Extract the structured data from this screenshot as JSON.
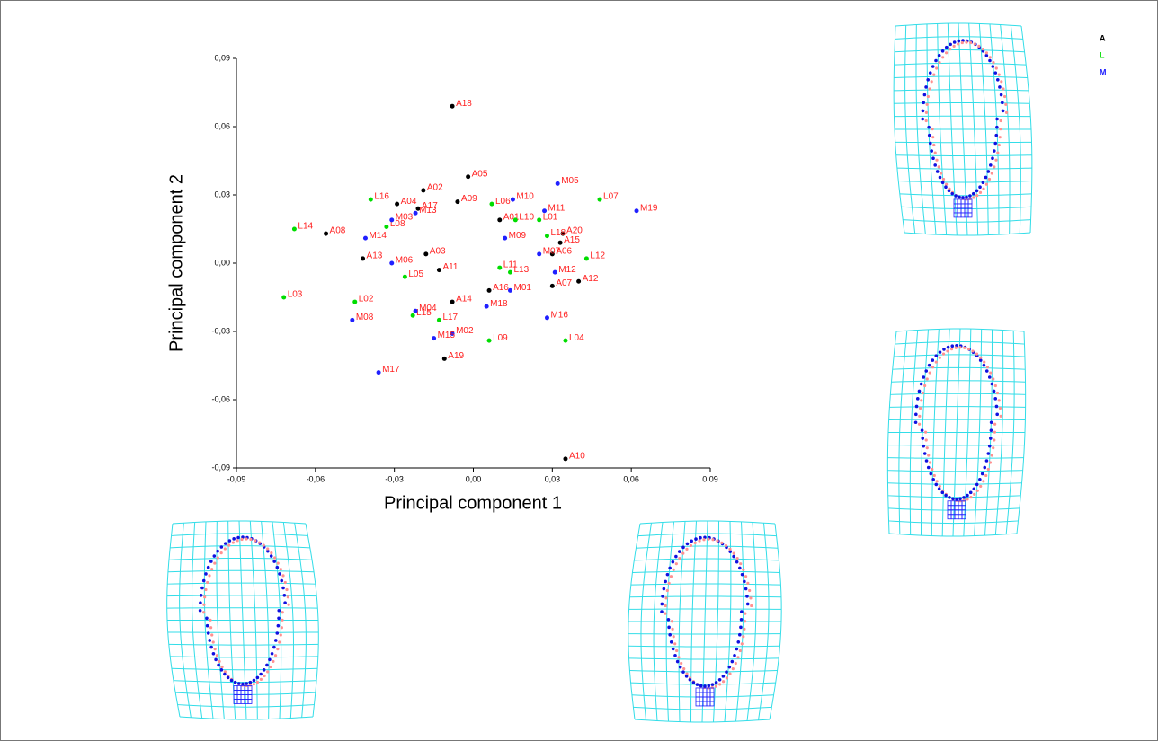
{
  "chart_data": {
    "type": "scatter",
    "xlabel": "Principal component 1",
    "ylabel": "Principal component 2",
    "xlim": [
      -0.09,
      0.09
    ],
    "ylim": [
      -0.09,
      0.09
    ],
    "xticks": [
      {
        "value": -0.09,
        "label": "-0,09"
      },
      {
        "value": -0.06,
        "label": "-0,06"
      },
      {
        "value": -0.03,
        "label": "-0,03"
      },
      {
        "value": 0,
        "label": "0,00"
      },
      {
        "value": 0.03,
        "label": "0,03"
      },
      {
        "value": 0.06,
        "label": "0,06"
      },
      {
        "value": 0.09,
        "label": "0,09"
      }
    ],
    "yticks": [
      {
        "value": -0.09,
        "label": "-0,09"
      },
      {
        "value": -0.06,
        "label": "-0,06"
      },
      {
        "value": -0.03,
        "label": "-0,03"
      },
      {
        "value": 0,
        "label": "0,00"
      },
      {
        "value": 0.03,
        "label": "0,03"
      },
      {
        "value": 0.06,
        "label": "0,06"
      },
      {
        "value": 0.09,
        "label": "0,09"
      }
    ],
    "legend": "top-right",
    "series": [
      {
        "name": "A",
        "color": "#000000",
        "labels": [
          "A18",
          "A05",
          "A02",
          "A04",
          "A17",
          "A09",
          "A01",
          "A08",
          "A20",
          "A15",
          "A06",
          "A13",
          "A03",
          "A11",
          "A07",
          "A12",
          "A16",
          "A14",
          "A19",
          "A10"
        ],
        "x": [
          -0.008,
          -0.002,
          -0.019,
          -0.029,
          -0.021,
          -0.006,
          0.01,
          -0.056,
          0.034,
          0.033,
          0.03,
          -0.042,
          -0.018,
          -0.013,
          0.03,
          0.04,
          0.006,
          -0.008,
          -0.011,
          0.035
        ],
        "values": [
          0.069,
          0.038,
          0.032,
          0.026,
          0.024,
          0.027,
          0.019,
          0.013,
          0.013,
          0.009,
          0.004,
          0.002,
          0.004,
          -0.003,
          -0.01,
          -0.008,
          -0.012,
          -0.017,
          -0.042,
          -0.086
        ]
      },
      {
        "name": "L",
        "color": "#00dd00",
        "labels": [
          "L16",
          "L06",
          "L07",
          "L10",
          "L01",
          "L14",
          "L08",
          "L18",
          "L12",
          "L11",
          "L13",
          "L05",
          "L02",
          "L03",
          "L15",
          "L17",
          "L09",
          "L04"
        ],
        "x": [
          -0.039,
          0.007,
          0.048,
          0.016,
          0.025,
          -0.068,
          -0.033,
          0.028,
          0.043,
          0.01,
          0.014,
          -0.026,
          -0.045,
          -0.072,
          -0.023,
          -0.013,
          0.006,
          0.035
        ],
        "values": [
          0.028,
          0.026,
          0.028,
          0.019,
          0.019,
          0.015,
          0.016,
          0.012,
          0.002,
          -0.002,
          -0.004,
          -0.006,
          -0.017,
          -0.015,
          -0.023,
          -0.025,
          -0.034,
          -0.034
        ]
      },
      {
        "name": "M",
        "color": "#2020ff",
        "labels": [
          "M13",
          "M10",
          "M05",
          "M19",
          "M11",
          "M03",
          "M14",
          "M09",
          "M07",
          "M06",
          "M12",
          "M01",
          "M04",
          "M18",
          "M08",
          "M16",
          "M02",
          "M15",
          "M17"
        ],
        "x": [
          -0.022,
          0.015,
          0.032,
          0.062,
          0.027,
          -0.031,
          -0.041,
          0.012,
          0.025,
          -0.031,
          0.031,
          0.014,
          -0.022,
          0.005,
          -0.046,
          0.028,
          -0.008,
          -0.015,
          -0.036
        ],
        "values": [
          0.022,
          0.028,
          0.035,
          0.023,
          0.023,
          0.019,
          0.011,
          0.011,
          0.004,
          0.0,
          -0.004,
          -0.012,
          -0.021,
          -0.019,
          -0.025,
          -0.024,
          -0.031,
          -0.033,
          -0.048
        ]
      }
    ]
  }
}
